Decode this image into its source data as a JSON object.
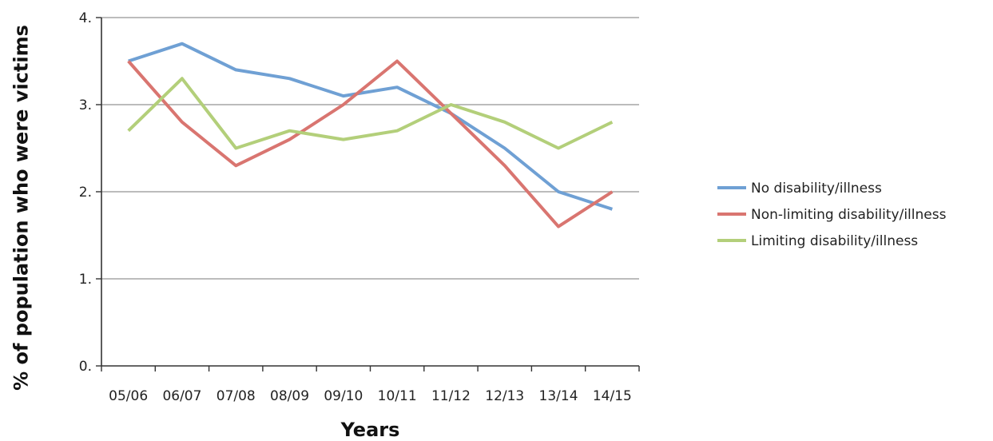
{
  "chart_data": {
    "type": "line",
    "title": "",
    "xlabel": "Years",
    "ylabel": "% of population who were victims",
    "categories": [
      "05/06",
      "06/07",
      "07/08",
      "08/09",
      "09/10",
      "10/11",
      "11/12",
      "12/13",
      "13/14",
      "14/15"
    ],
    "ylim": [
      0,
      4
    ],
    "y_ticks": [
      {
        "value": 0,
        "label": "0."
      },
      {
        "value": 1,
        "label": "1."
      },
      {
        "value": 2,
        "label": "2."
      },
      {
        "value": 3,
        "label": "3."
      },
      {
        "value": 4,
        "label": "4."
      }
    ],
    "grid": true,
    "legend_position": "right",
    "series": [
      {
        "name": "No disability/illness",
        "color": "#6fa0d4",
        "values": [
          3.5,
          3.7,
          3.4,
          3.3,
          3.1,
          3.2,
          2.9,
          2.5,
          2.0,
          1.8
        ]
      },
      {
        "name": "Non-limiting disability/illness",
        "color": "#d97570",
        "values": [
          3.5,
          2.8,
          2.3,
          2.6,
          3.0,
          3.5,
          2.9,
          2.3,
          1.6,
          2.0
        ]
      },
      {
        "name": "Limiting disability/illness",
        "color": "#b3cf7a",
        "values": [
          2.7,
          3.3,
          2.5,
          2.7,
          2.6,
          2.7,
          3.0,
          2.8,
          2.5,
          2.8
        ]
      }
    ]
  }
}
